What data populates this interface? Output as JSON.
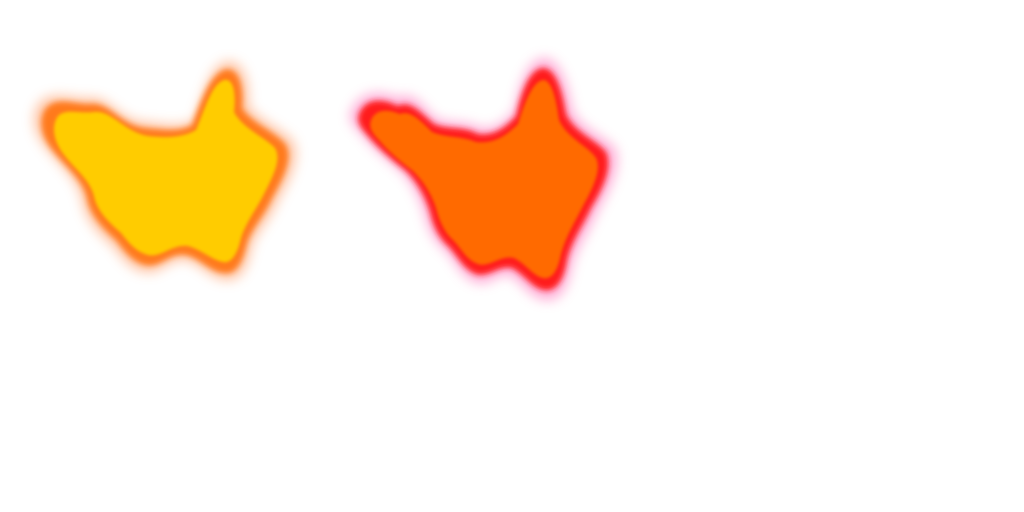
{
  "sprites": [
    {
      "name": "yellow-splotch",
      "fill": "#ffcc00",
      "edge": "#ff7a1a",
      "glow": "#ffb38a"
    },
    {
      "name": "orange-splotch",
      "fill": "#ff6a00",
      "edge": "#ff1a1a",
      "glow": "#ff99cc"
    }
  ],
  "background": "#ffffff"
}
